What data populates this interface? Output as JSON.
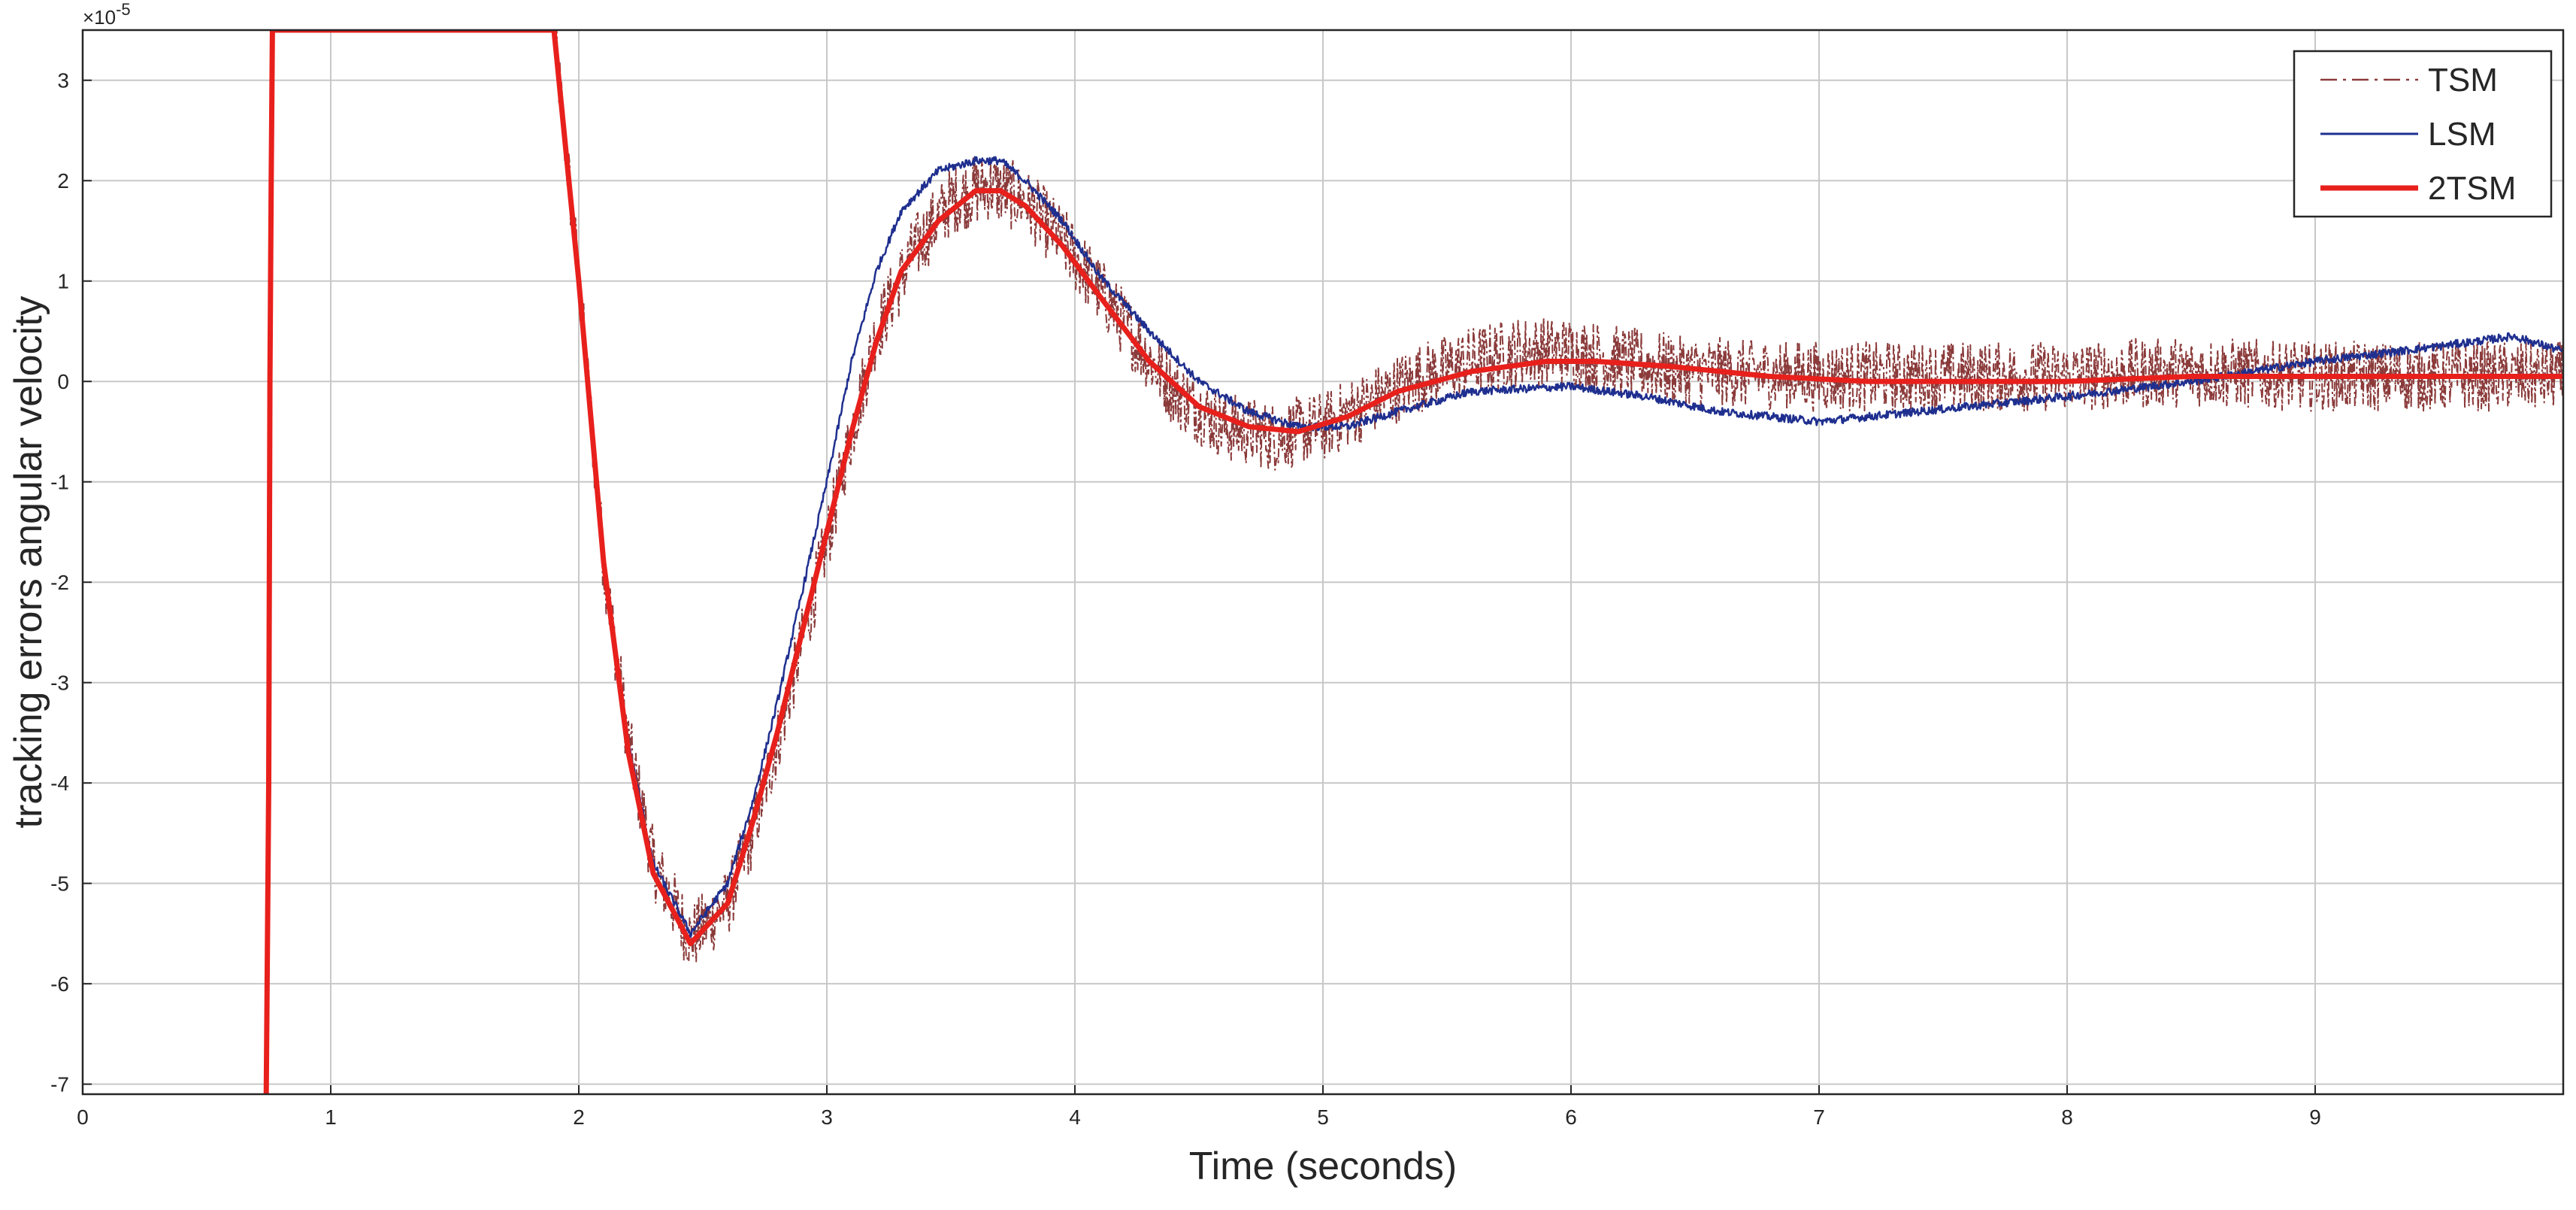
{
  "chart_data": {
    "type": "line",
    "title": "",
    "xlabel": "Time (seconds)",
    "ylabel": "tracking errors angular velocity",
    "y_exponent_label": "×10",
    "y_exponent_power": "-5",
    "xlim": [
      0,
      10
    ],
    "ylim": [
      -7.1,
      3.5
    ],
    "x_ticks": [
      0,
      1,
      2,
      3,
      4,
      5,
      6,
      7,
      8,
      9
    ],
    "y_ticks": [
      -7,
      -6,
      -5,
      -4,
      -3,
      -2,
      -1,
      0,
      1,
      2,
      3
    ],
    "grid": true,
    "legend_position": "top-right",
    "series": [
      {
        "name": "TSM",
        "color": "#8b3a3a",
        "style": "dash-dot",
        "noise": 0.35,
        "x": [
          1.9,
          2.0,
          2.1,
          2.2,
          2.3,
          2.45,
          2.6,
          2.7,
          2.8,
          2.9,
          3.0,
          3.1,
          3.2,
          3.35,
          3.5,
          3.65,
          3.8,
          3.95,
          4.1,
          4.25,
          4.4,
          4.6,
          4.8,
          5.0,
          5.2,
          5.4,
          5.6,
          5.8,
          6.0,
          6.2,
          6.5,
          7.0,
          7.5,
          8.0,
          8.5,
          9.0,
          9.5,
          10.0
        ],
        "values": [
          3.5,
          1.0,
          -1.8,
          -3.6,
          -4.8,
          -5.55,
          -5.2,
          -4.5,
          -3.6,
          -2.6,
          -1.6,
          -0.5,
          0.5,
          1.3,
          1.8,
          1.95,
          1.8,
          1.4,
          0.9,
          0.4,
          -0.1,
          -0.45,
          -0.55,
          -0.45,
          -0.2,
          0.05,
          0.2,
          0.3,
          0.3,
          0.2,
          0.1,
          0.05,
          0.05,
          0.05,
          0.1,
          0.05,
          0.05,
          0.05
        ]
      },
      {
        "name": "LSM",
        "color": "#1f2f8f",
        "style": "solid",
        "noise": 0.04,
        "x": [
          1.9,
          2.0,
          2.1,
          2.2,
          2.3,
          2.45,
          2.6,
          2.7,
          2.8,
          2.9,
          3.0,
          3.1,
          3.2,
          3.3,
          3.45,
          3.6,
          3.7,
          3.8,
          3.95,
          4.1,
          4.3,
          4.5,
          4.7,
          4.9,
          5.1,
          5.3,
          5.6,
          6.0,
          6.3,
          6.6,
          7.0,
          7.2,
          7.6,
          8.0,
          8.5,
          9.0,
          9.5,
          9.8,
          10.0
        ],
        "values": [
          3.5,
          1.0,
          -1.8,
          -3.6,
          -4.8,
          -5.5,
          -5.0,
          -4.2,
          -3.2,
          -2.1,
          -1.0,
          0.2,
          1.1,
          1.7,
          2.1,
          2.2,
          2.2,
          2.0,
          1.6,
          1.05,
          0.5,
          0.0,
          -0.3,
          -0.45,
          -0.45,
          -0.3,
          -0.1,
          -0.05,
          -0.15,
          -0.3,
          -0.4,
          -0.35,
          -0.25,
          -0.15,
          0.0,
          0.2,
          0.35,
          0.45,
          0.3
        ]
      },
      {
        "name": "2TSM",
        "color": "#e8201c",
        "style": "solid-thick",
        "noise": 0,
        "x": [
          0.74,
          0.75,
          0.755,
          0.76,
          0.765,
          1.9,
          2.0,
          2.1,
          2.2,
          2.3,
          2.45,
          2.6,
          2.7,
          2.8,
          2.9,
          3.0,
          3.1,
          3.2,
          3.3,
          3.45,
          3.6,
          3.7,
          3.8,
          3.95,
          4.1,
          4.3,
          4.5,
          4.7,
          4.9,
          5.1,
          5.3,
          5.6,
          5.9,
          6.1,
          6.4,
          6.8,
          7.2,
          7.6,
          8.0,
          8.5,
          9.0,
          9.5,
          10.0
        ],
        "values": [
          -7.1,
          -4.0,
          0.0,
          2.0,
          3.5,
          3.5,
          1.0,
          -1.8,
          -3.7,
          -4.9,
          -5.6,
          -5.2,
          -4.4,
          -3.5,
          -2.5,
          -1.5,
          -0.5,
          0.4,
          1.1,
          1.6,
          1.9,
          1.9,
          1.75,
          1.35,
          0.85,
          0.2,
          -0.25,
          -0.45,
          -0.5,
          -0.35,
          -0.1,
          0.1,
          0.2,
          0.2,
          0.15,
          0.05,
          0.0,
          0.0,
          0.0,
          0.05,
          0.05,
          0.05,
          0.05
        ]
      }
    ]
  }
}
